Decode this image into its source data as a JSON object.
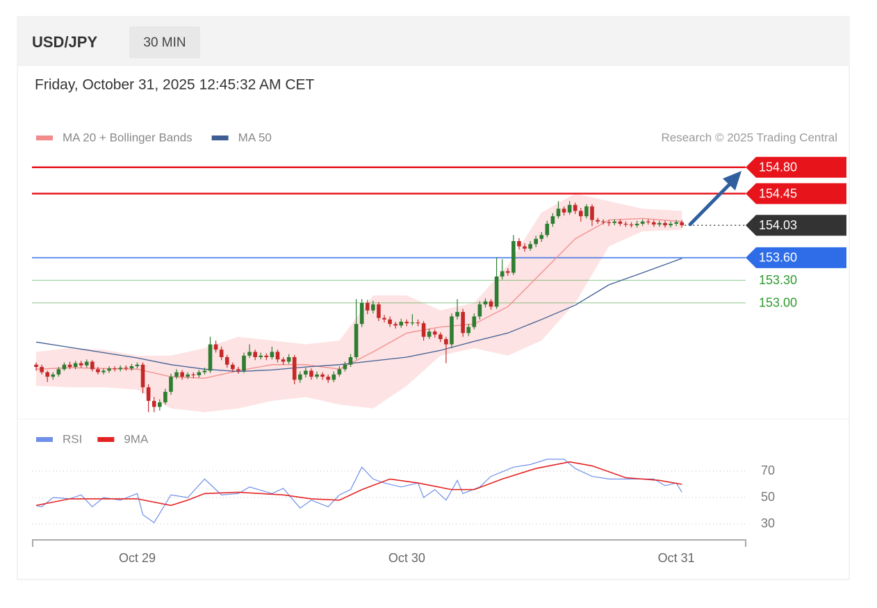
{
  "chart_data": {
    "type": "candlestick",
    "title": "USD/JPY",
    "timeframe": "30 MIN",
    "subtitle": "Friday, October 31, 2025 12:45:32 AM CET",
    "source": "Research © 2025 Trading Central",
    "up_color": "#2e7d32",
    "down_color": "#c62828",
    "xlim": [
      -0.5,
      126.6
    ],
    "xticks": [
      {
        "value": 18,
        "label": "Oct 29"
      },
      {
        "value": 66,
        "label": "Oct 30"
      },
      {
        "value": 114,
        "label": "Oct 31"
      }
    ],
    "ylim": [
      151.45,
      155.0
    ],
    "ohlc": [
      [
        152.18,
        152.21,
        152.1,
        152.15
      ],
      [
        152.15,
        152.18,
        152.05,
        152.08
      ],
      [
        152.08,
        152.1,
        151.95,
        152.02
      ],
      [
        152.02,
        152.08,
        151.98,
        152.05
      ],
      [
        152.05,
        152.15,
        152.02,
        152.12
      ],
      [
        152.12,
        152.21,
        152.1,
        152.18
      ],
      [
        152.18,
        152.22,
        152.12,
        152.15
      ],
      [
        152.15,
        152.23,
        152.12,
        152.2
      ],
      [
        152.2,
        152.23,
        152.14,
        152.17
      ],
      [
        152.17,
        152.25,
        152.14,
        152.22
      ],
      [
        152.22,
        152.24,
        152.09,
        152.12
      ],
      [
        152.12,
        152.15,
        152.05,
        152.08
      ],
      [
        152.08,
        152.13,
        152.05,
        152.1
      ],
      [
        152.1,
        152.16,
        152.07,
        152.13
      ],
      [
        152.13,
        152.16,
        152.09,
        152.12
      ],
      [
        152.12,
        152.17,
        152.09,
        152.14
      ],
      [
        152.14,
        152.17,
        152.1,
        152.13
      ],
      [
        152.13,
        152.19,
        152.1,
        152.16
      ],
      [
        152.16,
        152.21,
        152.13,
        152.18
      ],
      [
        152.18,
        152.21,
        151.8,
        151.88
      ],
      [
        151.88,
        151.92,
        151.55,
        151.7
      ],
      [
        151.7,
        151.75,
        151.55,
        151.62
      ],
      [
        151.62,
        151.72,
        151.57,
        151.68
      ],
      [
        151.68,
        151.86,
        151.65,
        151.82
      ],
      [
        151.82,
        152.06,
        151.78,
        152.02
      ],
      [
        152.02,
        152.12,
        151.99,
        152.08
      ],
      [
        152.08,
        152.11,
        151.98,
        152.02
      ],
      [
        152.02,
        152.08,
        151.99,
        152.05
      ],
      [
        152.05,
        152.08,
        152.0,
        152.04
      ],
      [
        152.04,
        152.11,
        152.01,
        152.08
      ],
      [
        152.08,
        152.14,
        152.05,
        152.1
      ],
      [
        152.1,
        152.55,
        152.07,
        152.45
      ],
      [
        152.45,
        152.5,
        152.34,
        152.38
      ],
      [
        152.38,
        152.42,
        152.24,
        152.28
      ],
      [
        152.28,
        152.31,
        152.14,
        152.18
      ],
      [
        152.18,
        152.21,
        152.08,
        152.12
      ],
      [
        152.12,
        152.15,
        152.06,
        152.1
      ],
      [
        152.1,
        152.34,
        152.07,
        152.3
      ],
      [
        152.3,
        152.45,
        152.27,
        152.35
      ],
      [
        152.35,
        152.38,
        152.24,
        152.28
      ],
      [
        152.28,
        152.34,
        152.25,
        152.3
      ],
      [
        152.3,
        152.33,
        152.24,
        152.28
      ],
      [
        152.28,
        152.42,
        152.25,
        152.35
      ],
      [
        152.35,
        152.38,
        152.21,
        152.25
      ],
      [
        152.25,
        152.28,
        152.18,
        152.22
      ],
      [
        152.22,
        152.32,
        152.19,
        152.28
      ],
      [
        152.28,
        152.31,
        151.92,
        151.98
      ],
      [
        151.98,
        152.09,
        151.94,
        152.05
      ],
      [
        152.05,
        152.14,
        152.01,
        152.1
      ],
      [
        152.1,
        152.13,
        151.98,
        152.02
      ],
      [
        152.02,
        152.09,
        151.99,
        152.05
      ],
      [
        152.05,
        152.08,
        151.98,
        152.02
      ],
      [
        152.02,
        152.05,
        151.94,
        151.98
      ],
      [
        151.98,
        152.09,
        151.95,
        152.05
      ],
      [
        152.05,
        152.16,
        152.02,
        152.12
      ],
      [
        152.12,
        152.22,
        152.09,
        152.18
      ],
      [
        152.18,
        152.32,
        152.15,
        152.28
      ],
      [
        152.28,
        153.05,
        152.25,
        152.72
      ],
      [
        152.72,
        153.05,
        152.68,
        153.0
      ],
      [
        153.0,
        153.04,
        152.85,
        152.9
      ],
      [
        152.9,
        153.03,
        152.86,
        152.98
      ],
      [
        152.98,
        153.01,
        152.76,
        152.8
      ],
      [
        152.8,
        152.84,
        152.74,
        152.78
      ],
      [
        152.78,
        152.82,
        152.68,
        152.72
      ],
      [
        152.72,
        152.75,
        152.66,
        152.7
      ],
      [
        152.7,
        152.79,
        152.67,
        152.75
      ],
      [
        152.75,
        152.78,
        152.69,
        152.73
      ],
      [
        152.73,
        152.85,
        152.7,
        152.74
      ],
      [
        152.74,
        152.78,
        152.69,
        152.73
      ],
      [
        152.73,
        152.76,
        152.5,
        152.55
      ],
      [
        152.55,
        152.66,
        152.52,
        152.62
      ],
      [
        152.62,
        152.65,
        152.54,
        152.58
      ],
      [
        152.58,
        152.61,
        152.48,
        152.52
      ],
      [
        152.52,
        152.55,
        152.2,
        152.45
      ],
      [
        152.45,
        152.86,
        152.4,
        152.82
      ],
      [
        152.82,
        153.05,
        152.78,
        152.88
      ],
      [
        152.88,
        152.92,
        152.55,
        152.6
      ],
      [
        152.6,
        152.72,
        152.56,
        152.68
      ],
      [
        152.68,
        152.86,
        152.65,
        152.82
      ],
      [
        152.82,
        153.02,
        152.78,
        152.98
      ],
      [
        152.98,
        153.06,
        152.94,
        153.02
      ],
      [
        153.02,
        153.05,
        152.91,
        152.95
      ],
      [
        152.95,
        153.6,
        152.92,
        153.35
      ],
      [
        153.35,
        153.58,
        153.31,
        153.42
      ],
      [
        153.42,
        153.46,
        153.36,
        153.4
      ],
      [
        153.4,
        153.9,
        153.37,
        153.82
      ],
      [
        153.82,
        153.86,
        153.71,
        153.75
      ],
      [
        153.75,
        153.79,
        153.68,
        153.72
      ],
      [
        153.72,
        153.82,
        153.69,
        153.78
      ],
      [
        153.78,
        153.89,
        153.74,
        153.85
      ],
      [
        153.85,
        153.94,
        153.81,
        153.9
      ],
      [
        153.9,
        154.09,
        153.87,
        154.05
      ],
      [
        154.05,
        154.19,
        154.01,
        154.15
      ],
      [
        154.15,
        154.35,
        154.12,
        154.25
      ],
      [
        154.25,
        154.28,
        154.16,
        154.2
      ],
      [
        154.2,
        154.35,
        154.17,
        154.3
      ],
      [
        154.3,
        154.33,
        154.18,
        154.22
      ],
      [
        154.22,
        154.26,
        154.08,
        154.15
      ],
      [
        154.15,
        154.31,
        154.12,
        154.28
      ],
      [
        154.28,
        154.31,
        154.02,
        154.1
      ],
      [
        154.1,
        154.13,
        154.05,
        154.08
      ],
      [
        154.08,
        154.11,
        154.04,
        154.07
      ],
      [
        154.07,
        154.1,
        154.02,
        154.06
      ],
      [
        154.06,
        154.11,
        154.03,
        154.08
      ],
      [
        154.08,
        154.11,
        154.02,
        154.05
      ],
      [
        154.05,
        154.08,
        154.01,
        154.04
      ],
      [
        154.04,
        154.07,
        154.0,
        154.03
      ],
      [
        154.03,
        154.09,
        154.0,
        154.05
      ],
      [
        154.05,
        154.11,
        154.02,
        154.08
      ],
      [
        154.08,
        154.11,
        154.04,
        154.07
      ],
      [
        154.07,
        154.1,
        154.01,
        154.04
      ],
      [
        154.04,
        154.09,
        154.01,
        154.06
      ],
      [
        154.06,
        154.09,
        154.0,
        154.03
      ],
      [
        154.03,
        154.08,
        154.0,
        154.05
      ],
      [
        154.05,
        154.1,
        154.02,
        154.07
      ],
      [
        154.07,
        154.1,
        154.0,
        154.03
      ]
    ],
    "overlays": [
      {
        "name": "MA 20 + Bollinger Bands",
        "color": "#f28b8b",
        "band_color": "#fde3e3",
        "x": [
          0,
          6,
          12,
          18,
          24,
          30,
          36,
          42,
          48,
          54,
          60,
          66,
          72,
          78,
          84,
          90,
          96,
          102,
          108,
          115
        ],
        "values": [
          152.12,
          152.14,
          152.13,
          152.12,
          152.02,
          152.0,
          152.1,
          152.18,
          152.18,
          152.12,
          152.35,
          152.6,
          152.68,
          152.72,
          152.95,
          153.4,
          153.85,
          154.1,
          154.12,
          154.08
        ],
        "upper": [
          152.35,
          152.4,
          152.38,
          152.3,
          152.3,
          152.4,
          152.55,
          152.5,
          152.45,
          152.5,
          153.1,
          153.1,
          152.9,
          153.0,
          153.5,
          154.2,
          154.45,
          154.35,
          154.25,
          154.22
        ],
        "lower": [
          151.9,
          151.88,
          151.88,
          151.85,
          151.6,
          151.55,
          151.6,
          151.7,
          151.75,
          151.65,
          151.6,
          151.9,
          152.3,
          152.4,
          152.3,
          152.5,
          153.0,
          153.75,
          153.95,
          153.97
        ]
      },
      {
        "name": "MA 50",
        "color": "#3d5d94",
        "x": [
          0,
          6,
          12,
          18,
          24,
          30,
          36,
          42,
          48,
          54,
          60,
          66,
          72,
          78,
          84,
          90,
          96,
          102,
          108,
          115
        ],
        "values": [
          152.48,
          152.41,
          152.34,
          152.27,
          152.18,
          152.12,
          152.09,
          152.11,
          152.15,
          152.18,
          152.23,
          152.28,
          152.37,
          152.49,
          152.6,
          152.78,
          152.97,
          153.24,
          153.4,
          153.59
        ]
      }
    ],
    "levels": [
      {
        "value": 154.8,
        "label": "154.80",
        "color": "#e8141b",
        "badge": true
      },
      {
        "value": 154.45,
        "label": "154.45",
        "color": "#e8141b",
        "badge": true
      },
      {
        "value": 153.6,
        "label": "153.60",
        "color": "#2f6de8",
        "badge": true
      },
      {
        "value": 153.3,
        "label": "153.30",
        "color": "#2e9a2e",
        "badge": false
      },
      {
        "value": 153.0,
        "label": "153.00",
        "color": "#2e9a2e",
        "badge": false
      }
    ],
    "last_price": {
      "value": 154.03,
      "label": "154.03",
      "color": "#333333"
    },
    "rsi": {
      "ylim": [
        20,
        90
      ],
      "yticks": [
        30,
        50,
        70
      ],
      "series": [
        {
          "name": "RSI",
          "color": "#6f8fe8",
          "x": [
            0,
            1,
            3,
            6,
            8,
            10,
            12,
            15,
            18,
            19,
            21,
            23,
            24,
            27,
            30,
            33,
            36,
            38,
            42,
            44,
            47,
            49,
            52,
            54,
            56,
            58,
            60,
            62,
            65,
            68,
            69,
            71,
            73,
            75,
            76,
            79,
            81,
            85,
            88,
            91,
            94,
            96,
            99,
            102,
            106,
            110,
            112,
            114,
            115
          ],
          "values": [
            44,
            43,
            50,
            49,
            52,
            43,
            50,
            48,
            53,
            37,
            31,
            45,
            52,
            50,
            64,
            52,
            53,
            58,
            53,
            57,
            42,
            48,
            43,
            52,
            56,
            73,
            64,
            61,
            58,
            61,
            50,
            56,
            48,
            63,
            53,
            58,
            66,
            73,
            75,
            79,
            79,
            72,
            66,
            64,
            64,
            64,
            59,
            61,
            54
          ]
        },
        {
          "name": "9MA",
          "color": "#e52222",
          "x": [
            0,
            6,
            18,
            24,
            27,
            30,
            36,
            44,
            49,
            54,
            58,
            63,
            68,
            74,
            78,
            83,
            89,
            95,
            99,
            105,
            111,
            115
          ],
          "values": [
            44,
            49,
            49,
            44,
            48,
            53,
            54,
            52,
            49,
            48,
            56,
            64,
            61,
            56,
            56,
            64,
            72,
            77,
            74,
            65,
            63,
            60
          ]
        }
      ]
    }
  }
}
